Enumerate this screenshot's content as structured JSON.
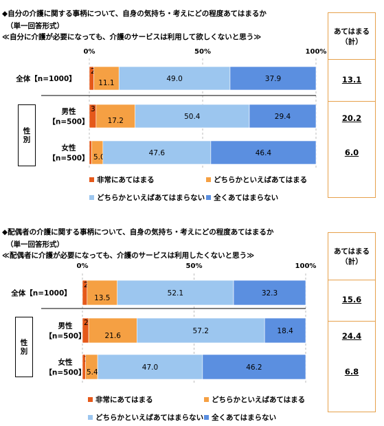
{
  "chart_data": [
    {
      "type": "bar",
      "orientation": "horizontal-stacked-100",
      "title_lines": [
        "◆自分の介護に関する事柄について、自身の気持ち・考えにどの程度あてはまるか",
        "（単一回答形式）",
        "≪自分に介護が必要になっても、介護のサービスは利用して欲しくないと思う≫"
      ],
      "x_ticks": [
        "0%",
        "50%",
        "100%"
      ],
      "xlim": [
        0,
        100
      ],
      "group_label": "性別",
      "rows": [
        {
          "label": "全体【n=1000】",
          "label_lines": [
            "全体【n=1000】"
          ],
          "values": [
            2.0,
            11.1,
            49.0,
            37.9
          ],
          "total": "13.1"
        },
        {
          "label": "男性【n=500】",
          "label_lines": [
            "男性",
            "【n=500】"
          ],
          "values": [
            3.0,
            17.2,
            50.4,
            29.4
          ],
          "total": "20.2"
        },
        {
          "label": "女性【n=500】",
          "label_lines": [
            "女性",
            "【n=500】"
          ],
          "values": [
            1.0,
            5.0,
            47.6,
            46.4
          ],
          "total": "6.0"
        }
      ],
      "total_header": [
        "あてはまる",
        "（計）"
      ]
    },
    {
      "type": "bar",
      "orientation": "horizontal-stacked-100",
      "title_lines": [
        "◆配偶者の介護に関する事柄について、自身の気持ち・考えにどの程度あてはまるか",
        "（単一回答形式）",
        "≪配偶者に介護が必要になっても、介護のサービスは利用したくないと思う≫"
      ],
      "x_ticks": [
        "0%",
        "50%",
        "100%"
      ],
      "xlim": [
        0,
        100
      ],
      "group_label": "性別",
      "rows": [
        {
          "label": "全体【n=1000】",
          "label_lines": [
            "全体【n=1000】"
          ],
          "values": [
            2.1,
            13.5,
            52.1,
            32.3
          ],
          "total": "15.6"
        },
        {
          "label": "男性【n=500】",
          "label_lines": [
            "男性",
            "【n=500】"
          ],
          "values": [
            2.8,
            21.6,
            57.2,
            18.4
          ],
          "total": "24.4"
        },
        {
          "label": "女性【n=500】",
          "label_lines": [
            "女性",
            "【n=500】"
          ],
          "values": [
            1.4,
            5.4,
            47.0,
            46.2
          ],
          "total": "6.8"
        }
      ],
      "total_header": [
        "あてはまる",
        "（計）"
      ]
    }
  ],
  "series": [
    {
      "name": "非常にあてはまる",
      "color": "#e5591a"
    },
    {
      "name": "どちらかといえばあてはまる",
      "color": "#f5a043"
    },
    {
      "name": "どちらかといえばあてはまらない",
      "color": "#9cc6ef"
    },
    {
      "name": "全くあてはまらない",
      "color": "#5b8fe0"
    }
  ]
}
